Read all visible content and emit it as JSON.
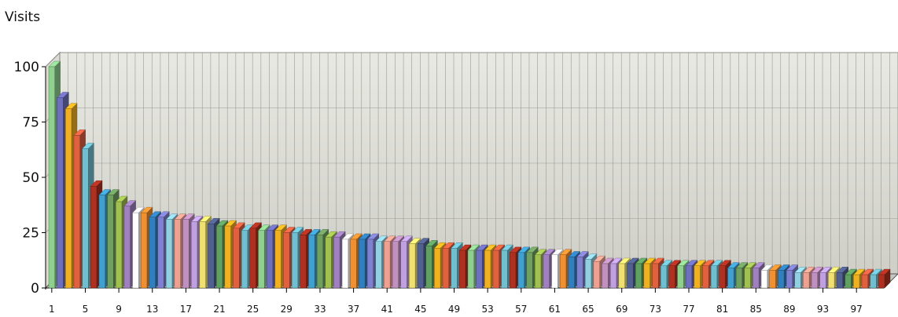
{
  "chart_data": {
    "type": "bar",
    "ylabel": "Visits",
    "ylim": [
      0,
      100
    ],
    "yticks": [
      0,
      25,
      50,
      75,
      100
    ],
    "x_tick_labels": [
      "1",
      "5",
      "9",
      "13",
      "17",
      "21",
      "25",
      "29",
      "33",
      "37",
      "41",
      "45",
      "49",
      "53",
      "57",
      "61",
      "65",
      "69",
      "73",
      "77",
      "81",
      "85",
      "89",
      "93",
      "97"
    ],
    "grid": true,
    "three_d": true,
    "categories": [
      1,
      2,
      3,
      4,
      5,
      6,
      7,
      8,
      9,
      10,
      11,
      12,
      13,
      14,
      15,
      16,
      17,
      18,
      19,
      20,
      21,
      22,
      23,
      24,
      25,
      26,
      27,
      28,
      29,
      30,
      31,
      32,
      33,
      34,
      35,
      36,
      37,
      38,
      39,
      40,
      41,
      42,
      43,
      44,
      45,
      46,
      47,
      48,
      49,
      50,
      51,
      52,
      53,
      54,
      55,
      56,
      57,
      58,
      59,
      60,
      61,
      62,
      63,
      64,
      65,
      66,
      67,
      68,
      69,
      70,
      71,
      72,
      73,
      74,
      75,
      76,
      77,
      78,
      79,
      80,
      81,
      82,
      83,
      84,
      85,
      86,
      87,
      88,
      89,
      90,
      91,
      92,
      93,
      94,
      95,
      96,
      97,
      98,
      99,
      100
    ],
    "values": [
      100,
      86,
      81,
      69,
      63,
      46,
      42,
      42,
      39,
      37,
      34,
      34,
      32,
      32,
      31,
      31,
      31,
      30,
      30,
      29,
      28,
      28,
      27,
      26,
      27,
      26,
      26,
      26,
      25,
      25,
      24,
      24,
      24,
      23,
      23,
      22,
      22,
      22,
      22,
      21,
      21,
      21,
      21,
      20,
      20,
      19,
      18,
      18,
      18,
      17,
      17,
      17,
      17,
      17,
      17,
      16,
      16,
      16,
      15,
      15,
      15,
      15,
      14,
      14,
      13,
      12,
      11,
      11,
      11,
      11,
      11,
      11,
      11,
      10,
      10,
      10,
      10,
      10,
      10,
      10,
      10,
      9,
      9,
      9,
      9,
      8,
      8,
      8,
      8,
      7,
      7,
      7,
      7,
      7,
      7,
      6,
      6,
      6,
      6,
      6
    ],
    "colors": [
      "#8fd08f",
      "#6f6fbf",
      "#f0b020",
      "#e06040",
      "#6fbfd0",
      "#b03020",
      "#40a0d0",
      "#70a060",
      "#a0c050",
      "#a080c0",
      "#ffffff",
      "#f09030",
      "#3080c0",
      "#8080d0",
      "#90d0e0",
      "#f0a090",
      "#c090c0",
      "#c0a0e0",
      "#f0e070",
      "#506090",
      "#60a060",
      "#f0b020",
      "#e06040",
      "#6fbfd0",
      "#b03020"
    ]
  }
}
